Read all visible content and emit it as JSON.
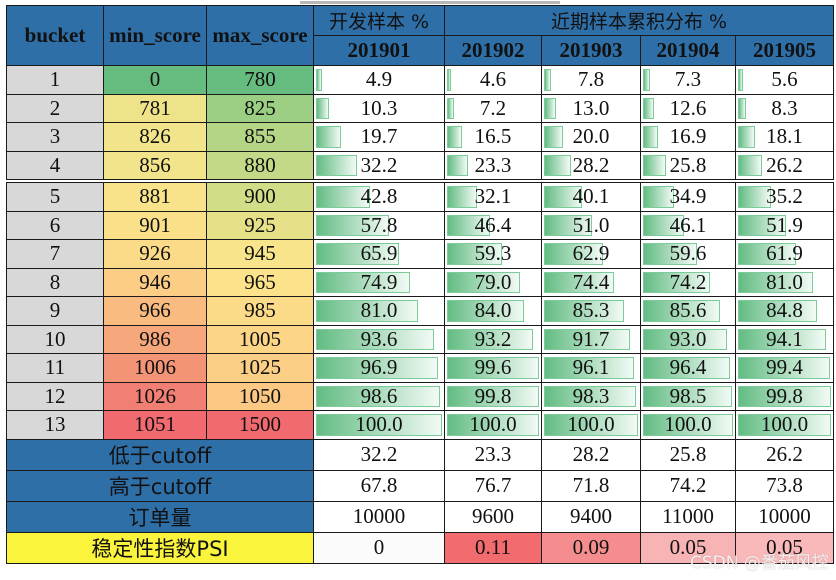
{
  "header": {
    "bucket": "bucket",
    "min_score": "min_score",
    "max_score": "max_score",
    "dev_group": "开发样本 %",
    "recent_group": "近期样本累积分布 %",
    "months": [
      "201901",
      "201902",
      "201903",
      "201904",
      "201905"
    ]
  },
  "rows": [
    {
      "bucket": "1",
      "min": "0",
      "max": "780",
      "min_color": "#66bb7e",
      "max_color": "#66bb7e",
      "vals": [
        "4.9",
        "4.6",
        "7.8",
        "7.3",
        "5.6"
      ]
    },
    {
      "bucket": "2",
      "min": "781",
      "max": "825",
      "min_color": "#efe38a",
      "max_color": "#9ccf84",
      "vals": [
        "10.3",
        "7.2",
        "13.0",
        "12.6",
        "8.3"
      ]
    },
    {
      "bucket": "3",
      "min": "826",
      "max": "855",
      "min_color": "#f1e48a",
      "max_color": "#b4d585",
      "vals": [
        "19.7",
        "16.5",
        "20.0",
        "16.9",
        "18.1"
      ]
    },
    {
      "bucket": "4",
      "min": "856",
      "max": "880",
      "min_color": "#f2e48a",
      "max_color": "#c3d987",
      "vals": [
        "32.2",
        "23.3",
        "28.2",
        "25.8",
        "26.2"
      ]
    },
    {
      "bucket": "5",
      "min": "881",
      "max": "900",
      "min_color": "#f8e28a",
      "max_color": "#d3dd88",
      "vals": [
        "42.8",
        "32.1",
        "40.1",
        "34.9",
        "35.2"
      ]
    },
    {
      "bucket": "6",
      "min": "901",
      "max": "925",
      "min_color": "#fbe08a",
      "max_color": "#e6e189",
      "vals": [
        "57.8",
        "46.4",
        "51.0",
        "46.1",
        "51.9"
      ]
    },
    {
      "bucket": "7",
      "min": "926",
      "max": "945",
      "min_color": "#fbdb88",
      "max_color": "#f8e48a",
      "vals": [
        "65.9",
        "59.3",
        "62.9",
        "59.6",
        "61.9"
      ]
    },
    {
      "bucket": "8",
      "min": "946",
      "max": "965",
      "min_color": "#fbcd85",
      "max_color": "#fce28a",
      "vals": [
        "74.9",
        "79.0",
        "74.4",
        "74.2",
        "81.0"
      ]
    },
    {
      "bucket": "9",
      "min": "966",
      "max": "985",
      "min_color": "#f9bb80",
      "max_color": "#fcdb88",
      "vals": [
        "81.0",
        "84.0",
        "85.3",
        "85.6",
        "84.8"
      ]
    },
    {
      "bucket": "10",
      "min": "986",
      "max": "1005",
      "min_color": "#f6a77b",
      "max_color": "#fcd586",
      "vals": [
        "93.6",
        "93.2",
        "91.7",
        "93.0",
        "94.1"
      ]
    },
    {
      "bucket": "11",
      "min": "1006",
      "max": "1025",
      "min_color": "#f49477",
      "max_color": "#fbcf85",
      "vals": [
        "96.9",
        "99.6",
        "96.1",
        "96.4",
        "99.4"
      ]
    },
    {
      "bucket": "12",
      "min": "1026",
      "max": "1050",
      "min_color": "#f27f73",
      "max_color": "#fbc983",
      "vals": [
        "98.6",
        "99.8",
        "98.3",
        "98.5",
        "99.8"
      ]
    },
    {
      "bucket": "13",
      "min": "1051",
      "max": "1500",
      "min_color": "#f06a6f",
      "max_color": "#f06a6f",
      "vals": [
        "100.0",
        "100.0",
        "100.0",
        "100.0",
        "100.0"
      ]
    }
  ],
  "summary": [
    {
      "label": "低于cutoff",
      "vals": [
        "32.2",
        "23.3",
        "28.2",
        "25.8",
        "26.2"
      ]
    },
    {
      "label": "高于cutoff",
      "vals": [
        "67.8",
        "76.7",
        "71.8",
        "74.2",
        "73.8"
      ]
    },
    {
      "label": "订单量",
      "vals": [
        "10000",
        "9600",
        "9400",
        "11000",
        "10000"
      ]
    }
  ],
  "psi": {
    "label": "稳定性指数PSI",
    "vals": [
      "0",
      "0.11",
      "0.09",
      "0.05",
      "0.05"
    ],
    "colors": [
      "#fbfbfb",
      "#f26b6e",
      "#f58d8f",
      "#f8b3b4",
      "#f9b9ba"
    ]
  },
  "watermark": "CSDN @番茄风控",
  "chart_data": {
    "type": "table",
    "title": "",
    "columns": [
      "bucket",
      "min_score",
      "max_score",
      "201901",
      "201902",
      "201903",
      "201904",
      "201905"
    ],
    "column_groups": [
      {
        "label": "开发样本 %",
        "columns": [
          "201901"
        ]
      },
      {
        "label": "近期样本累积分布 %",
        "columns": [
          "201902",
          "201903",
          "201904",
          "201905"
        ]
      }
    ],
    "buckets": [
      1,
      2,
      3,
      4,
      5,
      6,
      7,
      8,
      9,
      10,
      11,
      12,
      13
    ],
    "min_score": [
      0,
      781,
      826,
      856,
      881,
      901,
      926,
      946,
      966,
      986,
      1006,
      1026,
      1051
    ],
    "max_score": [
      780,
      825,
      855,
      880,
      900,
      925,
      945,
      965,
      985,
      1005,
      1025,
      1050,
      1500
    ],
    "series": [
      {
        "name": "201901",
        "values": [
          4.9,
          10.3,
          19.7,
          32.2,
          42.8,
          57.8,
          65.9,
          74.9,
          81.0,
          93.6,
          96.9,
          98.6,
          100.0
        ]
      },
      {
        "name": "201902",
        "values": [
          4.6,
          7.2,
          16.5,
          23.3,
          32.1,
          46.4,
          59.3,
          79.0,
          84.0,
          93.2,
          99.6,
          99.8,
          100.0
        ]
      },
      {
        "name": "201903",
        "values": [
          7.8,
          13.0,
          20.0,
          28.2,
          40.1,
          51.0,
          62.9,
          74.4,
          85.3,
          91.7,
          96.1,
          98.3,
          100.0
        ]
      },
      {
        "name": "201904",
        "values": [
          7.3,
          12.6,
          16.9,
          25.8,
          34.9,
          46.1,
          59.6,
          74.2,
          85.6,
          93.0,
          96.4,
          98.5,
          100.0
        ]
      },
      {
        "name": "201905",
        "values": [
          5.6,
          8.3,
          18.1,
          26.2,
          35.2,
          51.9,
          61.9,
          81.0,
          84.8,
          94.1,
          99.4,
          99.8,
          100.0
        ]
      }
    ],
    "summary": {
      "below_cutoff": [
        32.2,
        23.3,
        28.2,
        25.8,
        26.2
      ],
      "above_cutoff": [
        67.8,
        76.7,
        71.8,
        74.2,
        73.8
      ],
      "order_volume": [
        10000,
        9600,
        9400,
        11000,
        10000
      ],
      "psi": [
        0,
        0.11,
        0.09,
        0.05,
        0.05
      ]
    },
    "cutoff_after_bucket": 4
  }
}
